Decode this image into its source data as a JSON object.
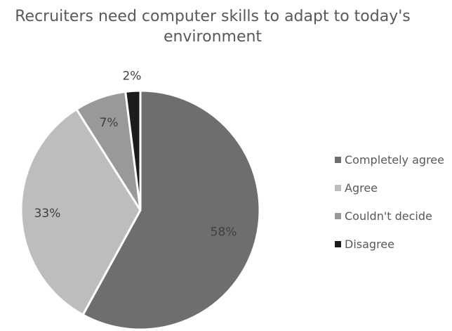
{
  "chart_data": {
    "type": "pie",
    "title": "Recruiters need computer skills to adapt to today's environment",
    "title_lines": [
      "Recruiters need computer skills to adapt to today's",
      "environment"
    ],
    "categories": [
      "Completely agree",
      "Agree",
      "Couldn't decide",
      "Disagree"
    ],
    "values": [
      58,
      33,
      7,
      2
    ],
    "labels": [
      "58%",
      "33%",
      "7%",
      "2%"
    ],
    "colors": [
      "#6e6e6e",
      "#bdbdbd",
      "#999999",
      "#1c1c1c"
    ],
    "label_colors": [
      "#3f3f3f",
      "#3f3f3f",
      "#404040",
      "#404040"
    ],
    "legend_position": "right"
  }
}
